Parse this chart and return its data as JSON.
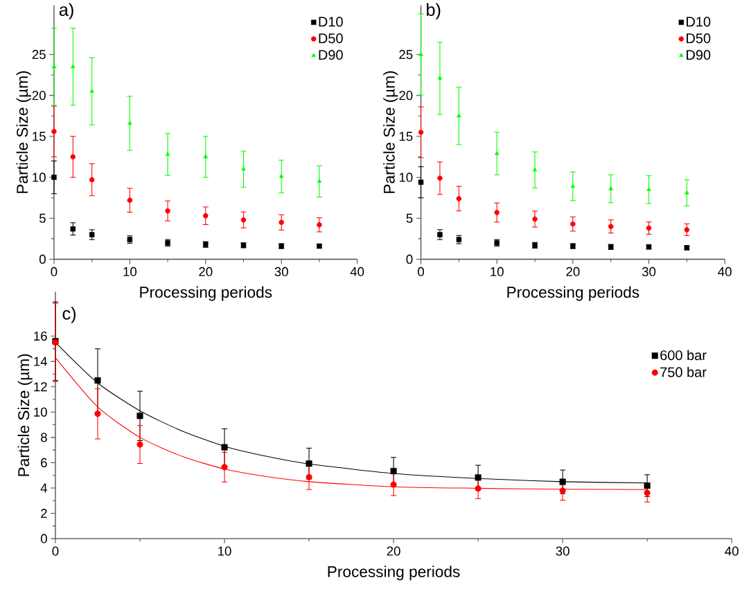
{
  "chart_data": [
    {
      "type": "scatter",
      "title": "a)",
      "xlabel": "Processing periods",
      "ylabel": "Particle Size (µm)",
      "xlim": [
        0,
        40
      ],
      "xticks": [
        0,
        10,
        20,
        30,
        40
      ],
      "ylim": [
        0,
        31
      ],
      "yticks": [
        0,
        5,
        10,
        15,
        20,
        25
      ],
      "legend": "top right",
      "x": [
        0,
        2.5,
        5,
        10,
        15,
        20,
        25,
        30,
        35
      ],
      "series": [
        {
          "name": "D10",
          "color": "#000000",
          "marker": "square",
          "values": [
            10.0,
            3.7,
            3.0,
            2.4,
            2.0,
            1.8,
            1.7,
            1.6,
            1.6
          ],
          "errors": [
            2.0,
            0.75,
            0.6,
            0.45,
            0.4,
            0.35,
            0.3,
            0.3,
            0.25
          ]
        },
        {
          "name": "D50",
          "color": "#ff0000",
          "marker": "circle",
          "values": [
            15.6,
            12.5,
            9.7,
            7.2,
            5.9,
            5.3,
            4.8,
            4.5,
            4.2
          ],
          "errors": [
            3.1,
            2.5,
            1.95,
            1.46,
            1.22,
            1.08,
            0.97,
            0.93,
            0.86
          ]
        },
        {
          "name": "D90",
          "color": "#00ff00",
          "marker": "triangle",
          "values": [
            23.5,
            23.5,
            20.5,
            16.6,
            12.8,
            12.5,
            11.0,
            10.1,
            9.5
          ],
          "errors": [
            4.7,
            4.7,
            4.1,
            3.3,
            2.55,
            2.5,
            2.2,
            2.0,
            1.9
          ]
        }
      ]
    },
    {
      "type": "scatter",
      "title": "b)",
      "xlabel": "Processing periods",
      "ylabel": "Particle Size (µm)",
      "xlim": [
        0,
        40
      ],
      "xticks": [
        0,
        10,
        20,
        30,
        40
      ],
      "ylim": [
        0,
        31
      ],
      "yticks": [
        0,
        5,
        10,
        15,
        20,
        25
      ],
      "legend": "top right",
      "x": [
        0,
        2.5,
        5,
        10,
        15,
        20,
        25,
        30,
        35
      ],
      "series": [
        {
          "name": "D10",
          "color": "#000000",
          "marker": "square",
          "values": [
            9.4,
            3.0,
            2.4,
            2.0,
            1.7,
            1.6,
            1.5,
            1.5,
            1.4
          ],
          "errors": [
            1.9,
            0.6,
            0.5,
            0.4,
            0.35,
            0.3,
            0.3,
            0.25,
            0.25
          ]
        },
        {
          "name": "D50",
          "color": "#ff0000",
          "marker": "circle",
          "values": [
            15.5,
            9.9,
            7.4,
            5.7,
            4.9,
            4.3,
            4.0,
            3.8,
            3.6
          ],
          "errors": [
            3.1,
            1.98,
            1.5,
            1.17,
            0.98,
            0.87,
            0.8,
            0.75,
            0.72
          ]
        },
        {
          "name": "D90",
          "color": "#00ff00",
          "marker": "triangle",
          "values": [
            25.0,
            22.1,
            17.5,
            12.9,
            10.9,
            8.9,
            8.6,
            8.5,
            8.1
          ],
          "errors": [
            4.95,
            4.4,
            3.5,
            2.6,
            2.2,
            1.75,
            1.7,
            1.7,
            1.6
          ]
        }
      ]
    },
    {
      "type": "scatter",
      "title": "c)",
      "xlabel": "Processing periods",
      "ylabel": "Particle Size (µm)",
      "xlim": [
        0,
        40
      ],
      "xticks": [
        0,
        10,
        20,
        30,
        40
      ],
      "ylim": [
        0,
        19.5
      ],
      "yticks": [
        0,
        2,
        4,
        6,
        8,
        10,
        12,
        14,
        16
      ],
      "legend": "top right",
      "x": [
        0,
        2.5,
        5,
        10,
        15,
        20,
        25,
        30,
        35
      ],
      "series": [
        {
          "name": "600 bar",
          "color": "#000000",
          "marker": "square",
          "values": [
            15.6,
            12.5,
            9.7,
            7.22,
            5.93,
            5.34,
            4.83,
            4.49,
            4.19
          ],
          "errors": [
            3.1,
            2.5,
            1.95,
            1.46,
            1.22,
            1.08,
            0.97,
            0.93,
            0.86
          ]
        },
        {
          "name": "750 bar",
          "color": "#ff0000",
          "marker": "circle",
          "values": [
            15.5,
            9.86,
            7.44,
            5.65,
            4.86,
            4.27,
            3.96,
            3.79,
            3.62
          ],
          "errors": [
            3.1,
            1.98,
            1.5,
            1.17,
            0.98,
            0.87,
            0.8,
            0.75,
            0.72
          ]
        },
        {
          "type": "line",
          "color": "#000000",
          "marker": "none",
          "x": [
            0,
            2.5,
            5,
            7.5,
            10,
            12.5,
            15,
            20,
            25,
            30,
            35
          ],
          "values": [
            15.5,
            12.3,
            10.1,
            8.5,
            7.3,
            6.5,
            5.9,
            5.15,
            4.75,
            4.5,
            4.4
          ]
        },
        {
          "type": "line",
          "color": "#ff0000",
          "marker": "none",
          "x": [
            0,
            2.5,
            5,
            7.5,
            10,
            12.5,
            15,
            20,
            25,
            30,
            35
          ],
          "values": [
            14.3,
            10.4,
            8.0,
            6.5,
            5.5,
            4.9,
            4.5,
            4.1,
            3.98,
            3.9,
            3.88
          ]
        }
      ]
    }
  ]
}
